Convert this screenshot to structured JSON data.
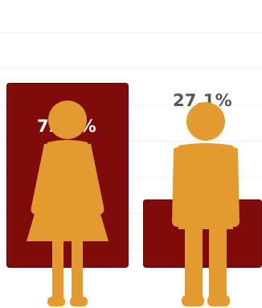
{
  "chart_data": {
    "type": "bar",
    "title": "",
    "xlabel": "",
    "ylabel": "",
    "ylim": [
      0,
      100
    ],
    "grid": true,
    "legend": "none",
    "categories": [
      "female",
      "male"
    ],
    "values": [
      72.9,
      27.1
    ],
    "data_labels": [
      "72.9%",
      "27.1%"
    ],
    "icons": [
      "female-person-icon",
      "male-person-icon"
    ]
  },
  "colors": {
    "bar": "#7f0b0b",
    "figure": "#e39a2f",
    "label_inside": "#ffffff",
    "label_outside": "#55575a",
    "background": "#ffffff",
    "grid": "#f1efec"
  }
}
